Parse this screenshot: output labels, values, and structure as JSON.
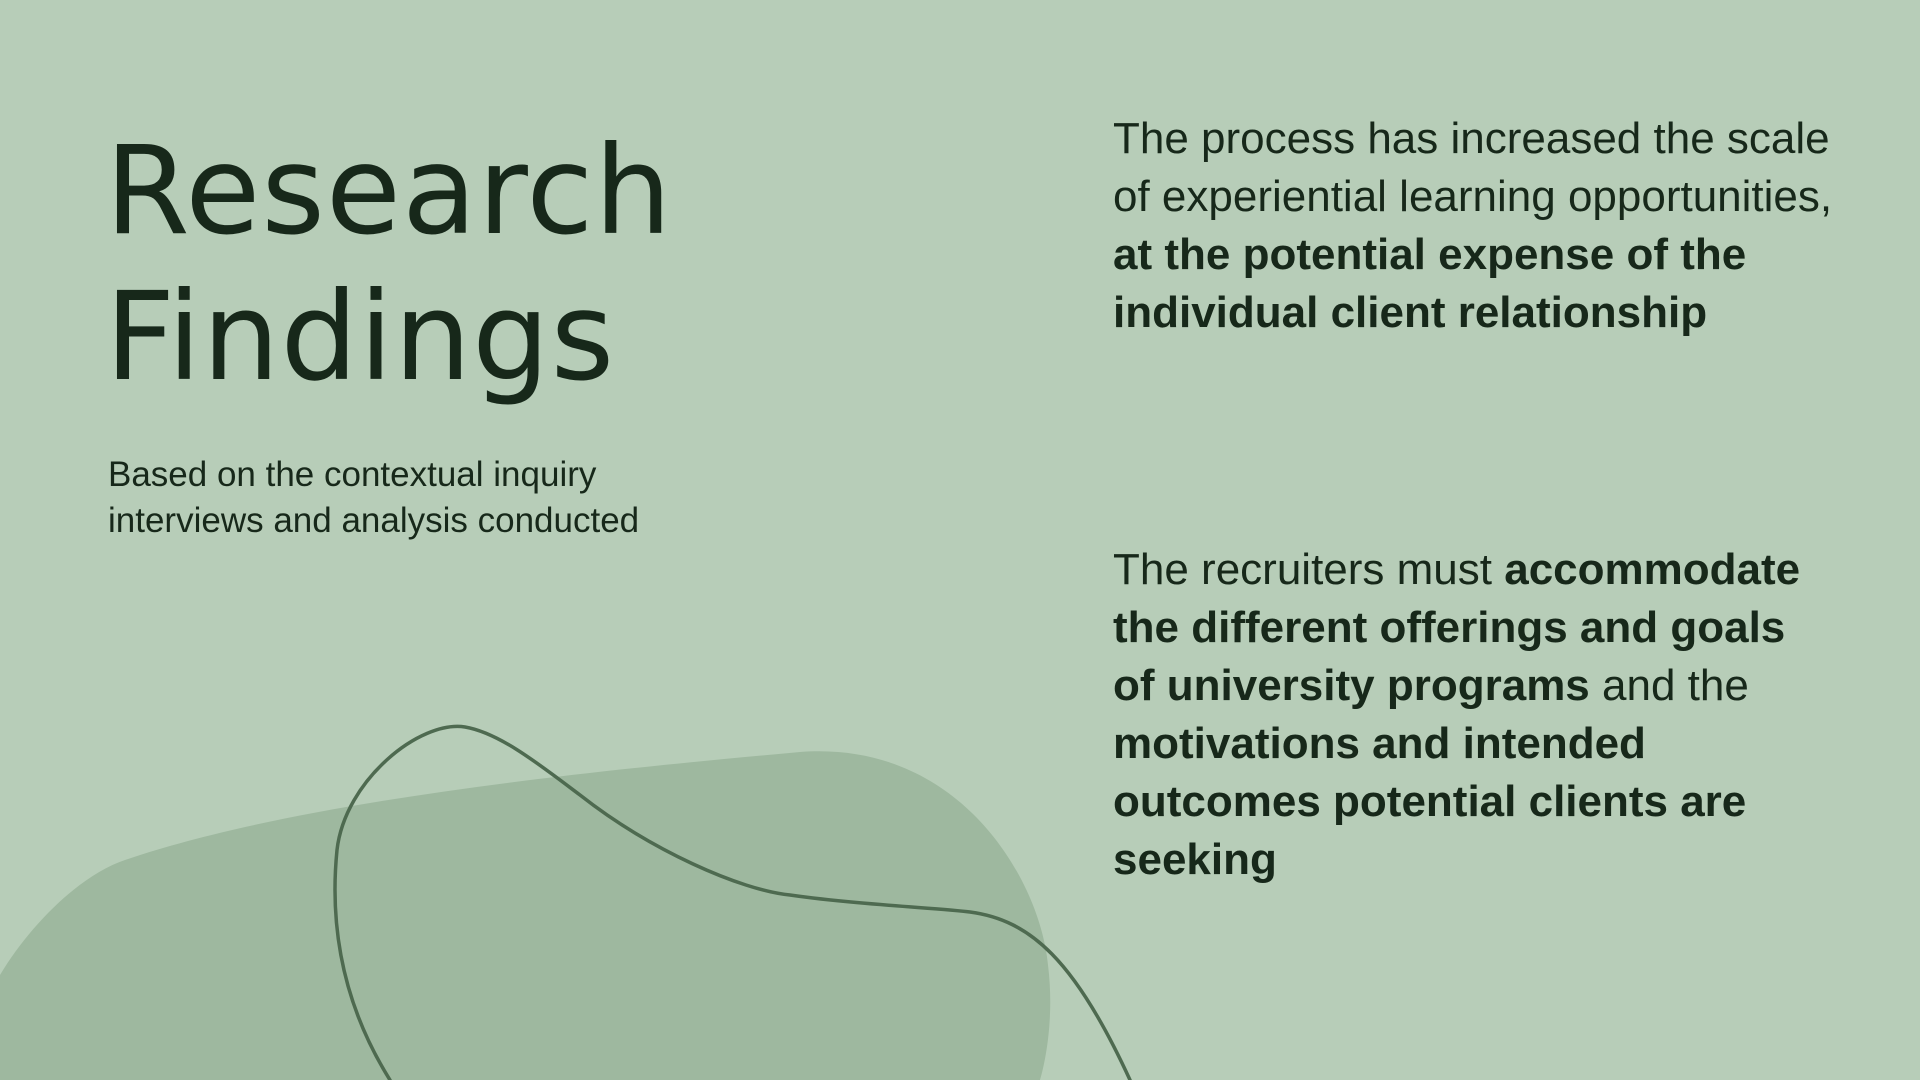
{
  "colors": {
    "background": "#b7cdb8",
    "blob": "#9eb89f",
    "line": "#4e6a50",
    "text": "#17281a"
  },
  "slide": {
    "title": [
      "Research",
      "Findings"
    ],
    "subtitle": [
      "Based on the contextual inquiry",
      "interviews and analysis conducted"
    ],
    "findings": [
      {
        "segments": [
          {
            "text": "The process has increased the scale of experiential learning opportunities, ",
            "bold": false
          },
          {
            "text": "at the potential expense of the individual client relationship",
            "bold": true
          }
        ]
      },
      {
        "segments": [
          {
            "text": "The recruiters must ",
            "bold": false
          },
          {
            "text": "accommodate the different offerings and goals of university programs",
            "bold": true
          },
          {
            "text": " and the ",
            "bold": false
          },
          {
            "text": "motivations and intended outcomes potential clients are seeking",
            "bold": true
          }
        ]
      }
    ]
  }
}
